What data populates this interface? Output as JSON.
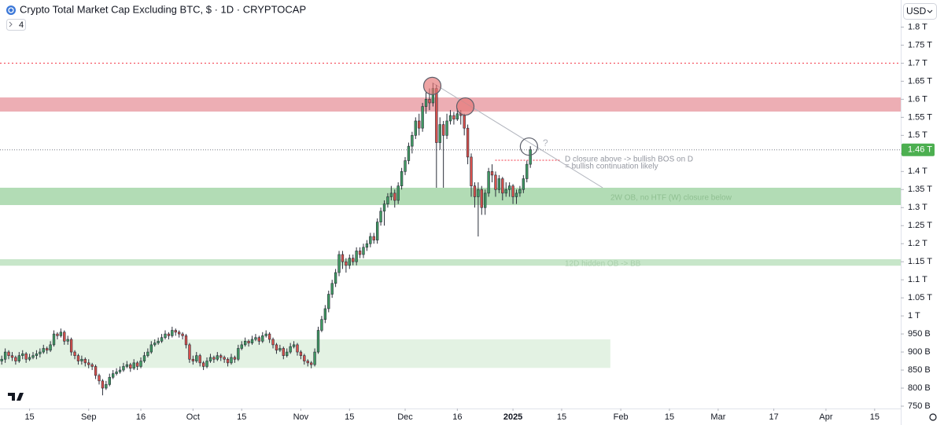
{
  "chart_data": {
    "type": "candlestick",
    "title": "Crypto Total Market Cap Excluding BTC, $ · 1D · CRYPTOCAP",
    "badge": "4",
    "currency": "USD",
    "up_color": "#3f9a62",
    "down_color": "#d9504c",
    "xlim": [
      -0.5,
      258.5
    ],
    "ylim": [
      0.7435,
      1.875
    ],
    "xticks": [
      {
        "value": 8,
        "label": "15"
      },
      {
        "value": 25,
        "label": "Sep"
      },
      {
        "value": 40,
        "label": "16"
      },
      {
        "value": 55,
        "label": "Oct"
      },
      {
        "value": 69,
        "label": "15"
      },
      {
        "value": 86,
        "label": "Nov"
      },
      {
        "value": 100,
        "label": "15"
      },
      {
        "value": 116,
        "label": "Dec"
      },
      {
        "value": 131,
        "label": "16"
      },
      {
        "value": 147,
        "label": "2025"
      },
      {
        "value": 161,
        "label": "15"
      },
      {
        "value": 178,
        "label": "Feb"
      },
      {
        "value": 192,
        "label": "15"
      },
      {
        "value": 206,
        "label": "Mar"
      },
      {
        "value": 222,
        "label": "17"
      },
      {
        "value": 237,
        "label": "Apr"
      },
      {
        "value": 251,
        "label": "15"
      }
    ],
    "yticks": [
      {
        "value": 1.8,
        "label": "1.8 T"
      },
      {
        "value": 1.75,
        "label": "1.75 T"
      },
      {
        "value": 1.7,
        "label": "1.7 T"
      },
      {
        "value": 1.65,
        "label": "1.65 T"
      },
      {
        "value": 1.6,
        "label": "1.6 T"
      },
      {
        "value": 1.55,
        "label": "1.55 T"
      },
      {
        "value": 1.5,
        "label": "1.5 T"
      },
      {
        "value": 1.45,
        "label": "1.45 T"
      },
      {
        "value": 1.4,
        "label": "1.4 T"
      },
      {
        "value": 1.35,
        "label": "1.35 T"
      },
      {
        "value": 1.3,
        "label": "1.3 T"
      },
      {
        "value": 1.25,
        "label": "1.25 T"
      },
      {
        "value": 1.2,
        "label": "1.2 T"
      },
      {
        "value": 1.15,
        "label": "1.15 T"
      },
      {
        "value": 1.1,
        "label": "1.1 T"
      },
      {
        "value": 1.05,
        "label": "1.05 T"
      },
      {
        "value": 1,
        "label": "1 T"
      },
      {
        "value": 0.95,
        "label": "950 B"
      },
      {
        "value": 0.9,
        "label": "900 B"
      },
      {
        "value": 0.85,
        "label": "850 B"
      },
      {
        "value": 0.8,
        "label": "800 B"
      },
      {
        "value": 0.75,
        "label": "750 B"
      }
    ],
    "grid": false,
    "last_price": {
      "value": 1.46,
      "label": "1.46 T",
      "color": "#4caf50"
    },
    "zones": [
      {
        "y": [
          1.566,
          1.605
        ],
        "color": "#e99aa1"
      },
      {
        "y": [
          1.307,
          1.355
        ],
        "color": "#9fd3a2"
      },
      {
        "y": [
          1.139,
          1.157
        ],
        "color": "#b9e0bb"
      },
      {
        "y": [
          0.856,
          0.935
        ],
        "x": [
          -0.5,
          175
        ],
        "color": "#dcefdc"
      }
    ],
    "lines": [
      {
        "x": [
          -0.5,
          258.5
        ],
        "y": [
          1.7,
          1.7
        ],
        "color": "#f23645",
        "dash": "2 3"
      },
      {
        "x": [
          123.8,
          172.8
        ],
        "y": [
          1.646,
          1.355
        ],
        "color": "#b2b5be",
        "dash": "none"
      },
      {
        "x": [
          141.9,
          160.4
        ],
        "y": [
          1.431,
          1.431
        ],
        "color": "#f23645",
        "dash": "2 2"
      }
    ],
    "markers": [
      {
        "x": 123.8,
        "y": 1.637,
        "color": "#e57373"
      },
      {
        "x": 133.3,
        "y": 1.58,
        "color": "#e57373"
      },
      {
        "x": 151.6,
        "y": 1.469,
        "color": "none"
      }
    ],
    "annotations": [
      "?",
      "D closure above -> bullish BOS on D",
      "= bullish continuation likely",
      "2W OB, no HTF (W) closure below",
      "12D hidden OB -> BB"
    ],
    "ohlc": [
      [
        0.875,
        0.89,
        0.865,
        0.88
      ],
      [
        0.88,
        0.91,
        0.87,
        0.9
      ],
      [
        0.9,
        0.905,
        0.88,
        0.89
      ],
      [
        0.89,
        0.9,
        0.875,
        0.885
      ],
      [
        0.885,
        0.89,
        0.865,
        0.875
      ],
      [
        0.875,
        0.9,
        0.87,
        0.89
      ],
      [
        0.89,
        0.905,
        0.88,
        0.895
      ],
      [
        0.895,
        0.9,
        0.87,
        0.88
      ],
      [
        0.88,
        0.895,
        0.875,
        0.885
      ],
      [
        0.885,
        0.9,
        0.88,
        0.89
      ],
      [
        0.89,
        0.905,
        0.88,
        0.895
      ],
      [
        0.895,
        0.91,
        0.885,
        0.9
      ],
      [
        0.9,
        0.92,
        0.895,
        0.91
      ],
      [
        0.91,
        0.915,
        0.895,
        0.905
      ],
      [
        0.905,
        0.93,
        0.9,
        0.92
      ],
      [
        0.92,
        0.96,
        0.915,
        0.95
      ],
      [
        0.95,
        0.955,
        0.935,
        0.945
      ],
      [
        0.945,
        0.965,
        0.94,
        0.955
      ],
      [
        0.955,
        0.96,
        0.92,
        0.93
      ],
      [
        0.93,
        0.945,
        0.92,
        0.935
      ],
      [
        0.935,
        0.94,
        0.89,
        0.9
      ],
      [
        0.9,
        0.905,
        0.88,
        0.89
      ],
      [
        0.89,
        0.895,
        0.865,
        0.875
      ],
      [
        0.875,
        0.89,
        0.865,
        0.88
      ],
      [
        0.88,
        0.885,
        0.86,
        0.87
      ],
      [
        0.87,
        0.88,
        0.855,
        0.865
      ],
      [
        0.865,
        0.87,
        0.85,
        0.86
      ],
      [
        0.86,
        0.865,
        0.825,
        0.835
      ],
      [
        0.835,
        0.84,
        0.81,
        0.82
      ],
      [
        0.82,
        0.825,
        0.78,
        0.8
      ],
      [
        0.8,
        0.82,
        0.795,
        0.81
      ],
      [
        0.81,
        0.84,
        0.805,
        0.83
      ],
      [
        0.83,
        0.85,
        0.825,
        0.84
      ],
      [
        0.84,
        0.855,
        0.835,
        0.845
      ],
      [
        0.845,
        0.86,
        0.84,
        0.85
      ],
      [
        0.85,
        0.87,
        0.845,
        0.86
      ],
      [
        0.86,
        0.875,
        0.855,
        0.865
      ],
      [
        0.865,
        0.87,
        0.845,
        0.855
      ],
      [
        0.855,
        0.88,
        0.85,
        0.87
      ],
      [
        0.87,
        0.875,
        0.85,
        0.86
      ],
      [
        0.86,
        0.885,
        0.855,
        0.875
      ],
      [
        0.875,
        0.9,
        0.87,
        0.89
      ],
      [
        0.89,
        0.91,
        0.885,
        0.9
      ],
      [
        0.9,
        0.93,
        0.895,
        0.92
      ],
      [
        0.92,
        0.935,
        0.915,
        0.925
      ],
      [
        0.925,
        0.94,
        0.92,
        0.93
      ],
      [
        0.93,
        0.95,
        0.925,
        0.94
      ],
      [
        0.94,
        0.96,
        0.935,
        0.95
      ],
      [
        0.95,
        0.955,
        0.935,
        0.945
      ],
      [
        0.945,
        0.97,
        0.94,
        0.96
      ],
      [
        0.96,
        0.965,
        0.945,
        0.955
      ],
      [
        0.955,
        0.96,
        0.94,
        0.95
      ],
      [
        0.95,
        0.955,
        0.935,
        0.945
      ],
      [
        0.945,
        0.95,
        0.91,
        0.92
      ],
      [
        0.92,
        0.925,
        0.87,
        0.88
      ],
      [
        0.88,
        0.89,
        0.865,
        0.875
      ],
      [
        0.875,
        0.9,
        0.87,
        0.89
      ],
      [
        0.89,
        0.895,
        0.86,
        0.87
      ],
      [
        0.87,
        0.875,
        0.85,
        0.86
      ],
      [
        0.86,
        0.885,
        0.855,
        0.875
      ],
      [
        0.875,
        0.895,
        0.87,
        0.885
      ],
      [
        0.885,
        0.89,
        0.87,
        0.88
      ],
      [
        0.88,
        0.9,
        0.875,
        0.89
      ],
      [
        0.89,
        0.895,
        0.875,
        0.885
      ],
      [
        0.885,
        0.89,
        0.87,
        0.88
      ],
      [
        0.88,
        0.885,
        0.86,
        0.87
      ],
      [
        0.87,
        0.895,
        0.865,
        0.885
      ],
      [
        0.885,
        0.89,
        0.87,
        0.88
      ],
      [
        0.88,
        0.92,
        0.875,
        0.91
      ],
      [
        0.91,
        0.93,
        0.905,
        0.92
      ],
      [
        0.92,
        0.94,
        0.915,
        0.93
      ],
      [
        0.93,
        0.935,
        0.915,
        0.925
      ],
      [
        0.925,
        0.945,
        0.92,
        0.935
      ],
      [
        0.935,
        0.95,
        0.93,
        0.94
      ],
      [
        0.94,
        0.945,
        0.92,
        0.93
      ],
      [
        0.93,
        0.955,
        0.925,
        0.945
      ],
      [
        0.945,
        0.96,
        0.94,
        0.95
      ],
      [
        0.95,
        0.955,
        0.925,
        0.935
      ],
      [
        0.935,
        0.94,
        0.91,
        0.92
      ],
      [
        0.92,
        0.925,
        0.895,
        0.905
      ],
      [
        0.905,
        0.92,
        0.9,
        0.91
      ],
      [
        0.91,
        0.915,
        0.88,
        0.89
      ],
      [
        0.89,
        0.91,
        0.885,
        0.9
      ],
      [
        0.9,
        0.925,
        0.895,
        0.915
      ],
      [
        0.915,
        0.93,
        0.91,
        0.92
      ],
      [
        0.92,
        0.925,
        0.89,
        0.9
      ],
      [
        0.9,
        0.905,
        0.88,
        0.89
      ],
      [
        0.89,
        0.895,
        0.865,
        0.875
      ],
      [
        0.875,
        0.88,
        0.86,
        0.87
      ],
      [
        0.87,
        0.875,
        0.855,
        0.865
      ],
      [
        0.865,
        0.91,
        0.86,
        0.9
      ],
      [
        0.9,
        0.97,
        0.895,
        0.96
      ],
      [
        0.96,
        1.0,
        0.955,
        0.99
      ],
      [
        0.99,
        1.03,
        0.98,
        1.02
      ],
      [
        1.02,
        1.07,
        1.01,
        1.06
      ],
      [
        1.06,
        1.1,
        1.05,
        1.09
      ],
      [
        1.09,
        1.13,
        1.08,
        1.12
      ],
      [
        1.12,
        1.18,
        1.11,
        1.17
      ],
      [
        1.17,
        1.18,
        1.13,
        1.15
      ],
      [
        1.15,
        1.16,
        1.12,
        1.14
      ],
      [
        1.14,
        1.17,
        1.13,
        1.16
      ],
      [
        1.16,
        1.17,
        1.14,
        1.15
      ],
      [
        1.15,
        1.19,
        1.14,
        1.18
      ],
      [
        1.18,
        1.19,
        1.16,
        1.17
      ],
      [
        1.17,
        1.2,
        1.16,
        1.19
      ],
      [
        1.19,
        1.21,
        1.18,
        1.2
      ],
      [
        1.2,
        1.23,
        1.19,
        1.22
      ],
      [
        1.22,
        1.23,
        1.2,
        1.21
      ],
      [
        1.21,
        1.27,
        1.2,
        1.26
      ],
      [
        1.26,
        1.3,
        1.25,
        1.29
      ],
      [
        1.29,
        1.32,
        1.25,
        1.31
      ],
      [
        1.31,
        1.34,
        1.3,
        1.33
      ],
      [
        1.33,
        1.36,
        1.32,
        1.34
      ],
      [
        1.34,
        1.35,
        1.3,
        1.32
      ],
      [
        1.32,
        1.37,
        1.31,
        1.36
      ],
      [
        1.36,
        1.41,
        1.35,
        1.4
      ],
      [
        1.4,
        1.44,
        1.39,
        1.43
      ],
      [
        1.43,
        1.48,
        1.42,
        1.47
      ],
      [
        1.47,
        1.51,
        1.45,
        1.5
      ],
      [
        1.5,
        1.55,
        1.49,
        1.54
      ],
      [
        1.54,
        1.56,
        1.5,
        1.52
      ],
      [
        1.52,
        1.59,
        1.51,
        1.58
      ],
      [
        1.58,
        1.62,
        1.56,
        1.6
      ],
      [
        1.6,
        1.63,
        1.57,
        1.59
      ],
      [
        1.59,
        1.645,
        1.58,
        1.63
      ],
      [
        1.63,
        1.64,
        1.355,
        1.48
      ],
      [
        1.48,
        1.55,
        1.46,
        1.53
      ],
      [
        1.53,
        1.54,
        1.355,
        1.5
      ],
      [
        1.5,
        1.56,
        1.49,
        1.54
      ],
      [
        1.54,
        1.57,
        1.53,
        1.555
      ],
      [
        1.555,
        1.565,
        1.53,
        1.545
      ],
      [
        1.545,
        1.575,
        1.54,
        1.56
      ],
      [
        1.56,
        1.57,
        1.53,
        1.555
      ],
      [
        1.555,
        1.56,
        1.5,
        1.52
      ],
      [
        1.52,
        1.53,
        1.42,
        1.44
      ],
      [
        1.44,
        1.45,
        1.33,
        1.36
      ],
      [
        1.36,
        1.37,
        1.3,
        1.33
      ],
      [
        1.33,
        1.37,
        1.22,
        1.35
      ],
      [
        1.35,
        1.36,
        1.28,
        1.3
      ],
      [
        1.3,
        1.35,
        1.28,
        1.34
      ],
      [
        1.34,
        1.41,
        1.33,
        1.4
      ],
      [
        1.4,
        1.42,
        1.37,
        1.39
      ],
      [
        1.39,
        1.4,
        1.33,
        1.35
      ],
      [
        1.35,
        1.39,
        1.34,
        1.38
      ],
      [
        1.38,
        1.385,
        1.32,
        1.34
      ],
      [
        1.34,
        1.37,
        1.33,
        1.35
      ],
      [
        1.35,
        1.37,
        1.33,
        1.36
      ],
      [
        1.36,
        1.365,
        1.31,
        1.33
      ],
      [
        1.33,
        1.35,
        1.31,
        1.34
      ],
      [
        1.34,
        1.36,
        1.33,
        1.35
      ],
      [
        1.35,
        1.39,
        1.34,
        1.38
      ],
      [
        1.38,
        1.43,
        1.37,
        1.42
      ],
      [
        1.42,
        1.47,
        1.41,
        1.46
      ]
    ]
  }
}
